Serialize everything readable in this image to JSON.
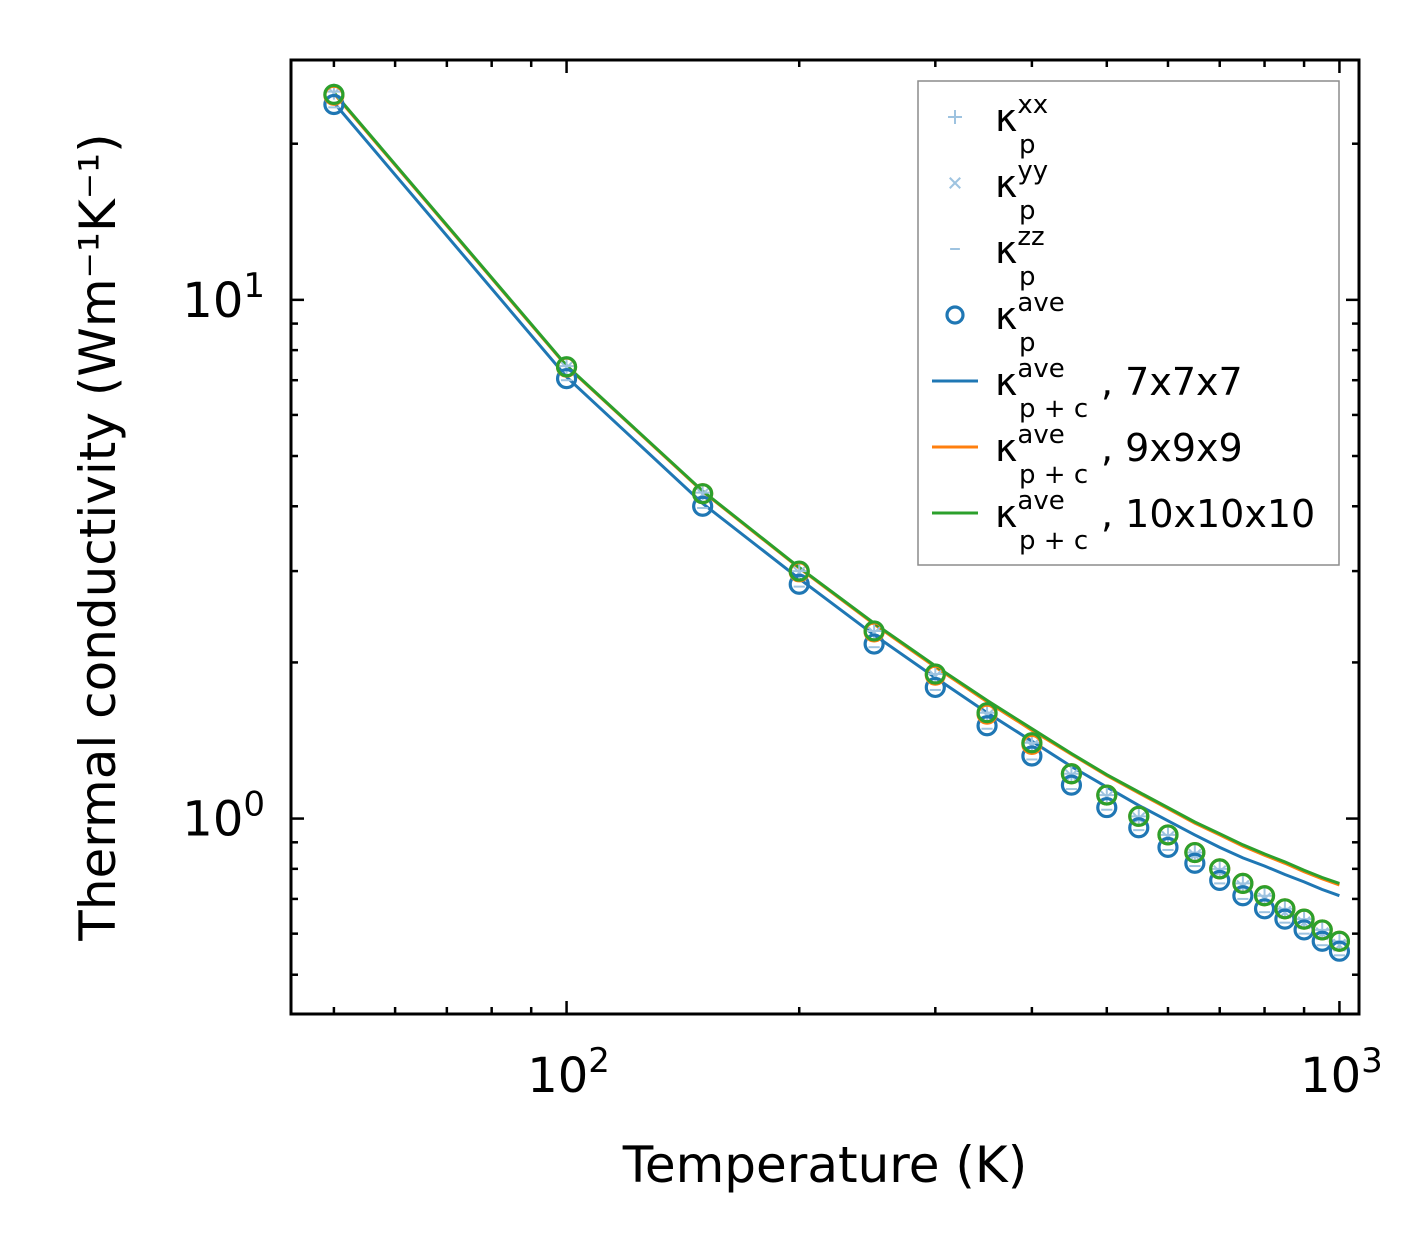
{
  "chart_data": {
    "type": "scatter",
    "title": "",
    "xlabel": "Temperature (K)",
    "ylabel": "Thermal conductivity (Wm⁻¹K⁻¹)",
    "xscale": "log",
    "yscale": "log",
    "xlim": [
      44,
      1060
    ],
    "ylim": [
      0.42,
      29
    ],
    "x_ticks": [
      {
        "base": "10",
        "exp": "2",
        "value": 100
      },
      {
        "base": "10",
        "exp": "3",
        "value": 1000
      }
    ],
    "y_ticks": [
      {
        "base": "10",
        "exp": "0",
        "value": 1
      },
      {
        "base": "10",
        "exp": "1",
        "value": 10
      }
    ],
    "legend_location": "upper right",
    "temperatures": [
      50,
      100,
      150,
      200,
      250,
      300,
      350,
      400,
      450,
      500,
      550,
      600,
      650,
      700,
      750,
      800,
      850,
      900,
      950,
      1000
    ],
    "series": [
      {
        "name": "κ_p^xx",
        "kind": "marker",
        "marker": "plus",
        "color": "#9ec3e0",
        "values": [
          25.2,
          7.45,
          4.25,
          3.0,
          2.3,
          1.9,
          1.6,
          1.4,
          1.22,
          1.11,
          1.01,
          0.93,
          0.86,
          0.8,
          0.75,
          0.71,
          0.67,
          0.64,
          0.61,
          0.58
        ]
      },
      {
        "name": "κ_p^yy",
        "kind": "marker",
        "marker": "x",
        "color": "#9ec3e0",
        "values": [
          25.0,
          7.4,
          4.22,
          2.98,
          2.28,
          1.88,
          1.58,
          1.38,
          1.21,
          1.1,
          1.0,
          0.92,
          0.85,
          0.79,
          0.74,
          0.7,
          0.66,
          0.63,
          0.6,
          0.57
        ]
      },
      {
        "name": "κ_p^zz",
        "kind": "marker",
        "marker": "hline",
        "color": "#9ec3e0",
        "values": [
          23.5,
          7.0,
          3.97,
          2.8,
          2.14,
          1.77,
          1.49,
          1.3,
          1.14,
          1.04,
          0.95,
          0.87,
          0.81,
          0.75,
          0.7,
          0.66,
          0.63,
          0.6,
          0.57,
          0.545
        ]
      },
      {
        "name": "κ_p^ave",
        "kind": "marker",
        "marker": "circle",
        "color": "#1f77b4",
        "values": [
          23.8,
          7.05,
          4.0,
          2.83,
          2.17,
          1.79,
          1.51,
          1.32,
          1.16,
          1.05,
          0.96,
          0.88,
          0.82,
          0.76,
          0.71,
          0.67,
          0.64,
          0.61,
          0.58,
          0.555
        ]
      },
      {
        "name": "",
        "kind": "marker",
        "marker": "circle",
        "color": "#ff7f0e",
        "values": [
          24.8,
          7.42,
          4.23,
          2.99,
          2.29,
          1.89,
          1.59,
          1.39,
          1.22,
          1.11,
          1.01,
          0.93,
          0.86,
          0.8,
          0.75,
          0.71,
          0.67,
          0.64,
          0.61,
          0.58
        ]
      },
      {
        "name": "",
        "kind": "marker",
        "marker": "circle",
        "color": "#2ca02c",
        "values": [
          24.9,
          7.43,
          4.23,
          3.0,
          2.3,
          1.9,
          1.6,
          1.4,
          1.22,
          1.11,
          1.01,
          0.93,
          0.86,
          0.8,
          0.75,
          0.71,
          0.67,
          0.64,
          0.61,
          0.58
        ]
      },
      {
        "name": "κ_p+c^ave, 7x7x7",
        "kind": "line",
        "color": "#1f77b4",
        "values": [
          24.0,
          7.1,
          4.05,
          2.9,
          2.26,
          1.87,
          1.6,
          1.41,
          1.26,
          1.15,
          1.06,
          0.99,
          0.93,
          0.88,
          0.84,
          0.81,
          0.78,
          0.755,
          0.73,
          0.71
        ]
      },
      {
        "name": "κ_p+c^ave, 9x9x9",
        "kind": "line",
        "color": "#ff7f0e",
        "values": [
          25.0,
          7.45,
          4.27,
          3.04,
          2.37,
          1.96,
          1.68,
          1.48,
          1.33,
          1.21,
          1.12,
          1.045,
          0.98,
          0.93,
          0.885,
          0.85,
          0.82,
          0.79,
          0.765,
          0.745
        ]
      },
      {
        "name": "κ_p+c^ave, 10x10x10",
        "kind": "line",
        "color": "#2ca02c",
        "values": [
          25.1,
          7.47,
          4.28,
          3.05,
          2.38,
          1.97,
          1.69,
          1.49,
          1.335,
          1.215,
          1.125,
          1.05,
          0.985,
          0.935,
          0.89,
          0.855,
          0.825,
          0.795,
          0.77,
          0.75
        ]
      }
    ],
    "legend": [
      {
        "symbol": "plus",
        "color": "#9ec3e0",
        "kappa": "κ",
        "sub": "p",
        "sup": "xx",
        "suffix": ""
      },
      {
        "symbol": "x",
        "color": "#9ec3e0",
        "kappa": "κ",
        "sub": "p",
        "sup": "yy",
        "suffix": ""
      },
      {
        "symbol": "hline",
        "color": "#9ec3e0",
        "kappa": "κ",
        "sub": "p",
        "sup": "zz",
        "suffix": ""
      },
      {
        "symbol": "circle",
        "color": "#1f77b4",
        "kappa": "κ",
        "sub": "p",
        "sup": "ave",
        "suffix": ""
      },
      {
        "symbol": "line",
        "color": "#1f77b4",
        "kappa": "κ",
        "sub": "p + c",
        "sup": "ave",
        "suffix": ", 7x7x7"
      },
      {
        "symbol": "line",
        "color": "#ff7f0e",
        "kappa": "κ",
        "sub": "p + c",
        "sup": "ave",
        "suffix": ", 9x9x9"
      },
      {
        "symbol": "line",
        "color": "#2ca02c",
        "kappa": "κ",
        "sub": "p + c",
        "sup": "ave",
        "suffix": ", 10x10x10"
      }
    ]
  }
}
